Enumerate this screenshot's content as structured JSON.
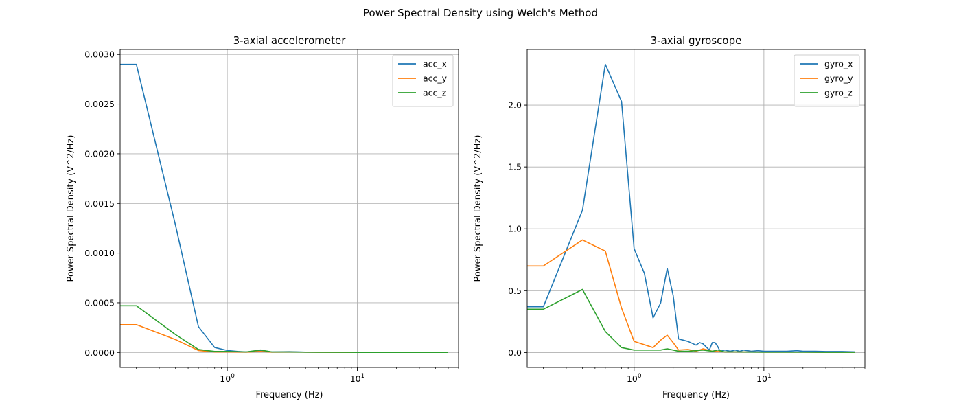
{
  "suptitle": "Power Spectral Density using Welch's Method",
  "chart_data": [
    {
      "type": "line",
      "title": "3-axial accelerometer",
      "xlabel": "Frequency (Hz)",
      "ylabel": "Power Spectral Density (V^2/Hz)",
      "xscale": "log",
      "xlim": [
        0.15,
        60
      ],
      "ylim": [
        -0.00015,
        0.00305
      ],
      "x_ticks": [
        1,
        10
      ],
      "x_tick_labels": [
        "10^0",
        "10^1"
      ],
      "y_ticks": [
        0,
        0.0005,
        0.001,
        0.0015,
        0.002,
        0.0025,
        0.003
      ],
      "y_tick_labels": [
        "0.0000",
        "0.0005",
        "0.0010",
        "0.0015",
        "0.0020",
        "0.0025",
        "0.0030"
      ],
      "grid": true,
      "legend_position": "top-right",
      "series": [
        {
          "name": "acc_x",
          "color": "#1f77b4",
          "x": [
            0.15,
            0.2,
            0.4,
            0.6,
            0.8,
            1.0,
            1.2,
            1.4,
            1.8,
            2.2,
            3,
            4,
            6,
            10,
            20,
            50
          ],
          "y": [
            0.0029,
            0.0029,
            0.00128,
            0.00026,
            5e-05,
            2e-05,
            1e-05,
            5e-06,
            2e-05,
            5e-06,
            8e-06,
            3e-06,
            3e-06,
            2e-06,
            2e-06,
            1e-06
          ]
        },
        {
          "name": "acc_y",
          "color": "#ff7f0e",
          "x": [
            0.15,
            0.2,
            0.4,
            0.6,
            0.8,
            1.0,
            1.4,
            1.8,
            2.2,
            3,
            5,
            10,
            20,
            50
          ],
          "y": [
            0.00028,
            0.00028,
            0.00013,
            2e-05,
            5e-06,
            5e-06,
            3e-06,
            1e-05,
            3e-06,
            4e-06,
            2e-06,
            1e-06,
            1e-06,
            1e-06
          ]
        },
        {
          "name": "acc_z",
          "color": "#2ca02c",
          "x": [
            0.15,
            0.2,
            0.4,
            0.6,
            0.8,
            1.0,
            1.4,
            1.8,
            2.2,
            3,
            5,
            10,
            20,
            50
          ],
          "y": [
            0.00047,
            0.00047,
            0.00018,
            3e-05,
            1e-05,
            1e-05,
            5e-06,
            2.5e-05,
            5e-06,
            5e-06,
            2e-06,
            1e-06,
            1e-06,
            1e-06
          ]
        }
      ]
    },
    {
      "type": "line",
      "title": "3-axial gyroscope",
      "xlabel": "Frequency (Hz)",
      "ylabel": "Power Spectral Density (V^2/Hz)",
      "xscale": "log",
      "xlim": [
        0.15,
        60
      ],
      "ylim": [
        -0.12,
        2.45
      ],
      "x_ticks": [
        1,
        10
      ],
      "x_tick_labels": [
        "10^0",
        "10^1"
      ],
      "y_ticks": [
        0,
        0.5,
        1.0,
        1.5,
        2.0
      ],
      "y_tick_labels": [
        "0.0",
        "0.5",
        "1.0",
        "1.5",
        "2.0"
      ],
      "grid": true,
      "legend_position": "top-right",
      "series": [
        {
          "name": "gyro_x",
          "color": "#1f77b4",
          "x": [
            0.15,
            0.2,
            0.4,
            0.6,
            0.8,
            1.0,
            1.2,
            1.4,
            1.6,
            1.8,
            2.0,
            2.2,
            2.6,
            3.0,
            3.2,
            3.4,
            3.8,
            4.0,
            4.2,
            4.4,
            4.6,
            5.0,
            5.5,
            6,
            6.5,
            7,
            8,
            9,
            10,
            12,
            15,
            18,
            20,
            25,
            30,
            40,
            50
          ],
          "y": [
            0.37,
            0.37,
            1.15,
            2.33,
            2.03,
            0.84,
            0.64,
            0.28,
            0.4,
            0.68,
            0.46,
            0.11,
            0.09,
            0.06,
            0.08,
            0.07,
            0.02,
            0.08,
            0.08,
            0.05,
            0.01,
            0.02,
            0.01,
            0.02,
            0.01,
            0.02,
            0.01,
            0.015,
            0.01,
            0.01,
            0.01,
            0.015,
            0.01,
            0.01,
            0.008,
            0.008,
            0.005
          ]
        },
        {
          "name": "gyro_y",
          "color": "#ff7f0e",
          "x": [
            0.15,
            0.2,
            0.4,
            0.6,
            0.8,
            1.0,
            1.4,
            1.6,
            1.8,
            2.0,
            2.2,
            2.6,
            3.0,
            3.4,
            4,
            5,
            6,
            8,
            10,
            15,
            20,
            30,
            50
          ],
          "y": [
            0.7,
            0.7,
            0.91,
            0.82,
            0.36,
            0.09,
            0.04,
            0.1,
            0.14,
            0.08,
            0.02,
            0.025,
            0.01,
            0.03,
            0.01,
            0.005,
            0.005,
            0.004,
            0.003,
            0.003,
            0.003,
            0.002,
            0.002
          ]
        },
        {
          "name": "gyro_z",
          "color": "#2ca02c",
          "x": [
            0.15,
            0.2,
            0.4,
            0.6,
            0.8,
            1.0,
            1.2,
            1.6,
            1.8,
            2.0,
            2.2,
            2.6,
            3.0,
            3.4,
            4.0,
            4.4,
            5,
            6,
            8,
            10,
            15,
            20,
            30,
            50
          ],
          "y": [
            0.35,
            0.35,
            0.51,
            0.17,
            0.04,
            0.02,
            0.02,
            0.02,
            0.03,
            0.02,
            0.01,
            0.01,
            0.015,
            0.02,
            0.01,
            0.02,
            0.005,
            0.005,
            0.004,
            0.003,
            0.003,
            0.003,
            0.002,
            0.002
          ]
        }
      ]
    }
  ]
}
